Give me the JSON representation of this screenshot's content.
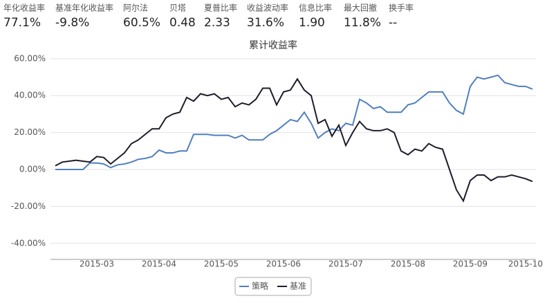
{
  "stats": [
    {
      "label": "年化收益率",
      "value": "77.1%"
    },
    {
      "label": "基准年化收益率",
      "value": "-9.8%"
    },
    {
      "label": "阿尔法",
      "value": "60.5%"
    },
    {
      "label": "贝塔",
      "value": "0.48"
    },
    {
      "label": "夏普比率",
      "value": "2.33"
    },
    {
      "label": "收益波动率",
      "value": "31.6%"
    },
    {
      "label": "信息比率",
      "value": "1.90"
    },
    {
      "label": "最大回撤",
      "value": "11.8%"
    },
    {
      "label": "换手率",
      "value": "--"
    }
  ],
  "chart_data": {
    "type": "line",
    "title": "累计收益率",
    "categories": [
      null,
      null,
      null,
      null,
      null,
      null,
      "2015-03",
      null,
      null,
      null,
      null,
      null,
      null,
      null,
      null,
      "2015-04",
      null,
      null,
      null,
      null,
      null,
      null,
      null,
      null,
      "2015-05",
      null,
      null,
      null,
      null,
      null,
      null,
      null,
      null,
      "2015-06",
      null,
      null,
      null,
      null,
      null,
      null,
      null,
      null,
      "2015-07",
      null,
      null,
      null,
      null,
      null,
      null,
      null,
      null,
      "2015-08",
      null,
      null,
      null,
      null,
      null,
      null,
      null,
      null,
      "2015-09",
      null,
      null,
      null,
      null,
      null,
      null,
      null,
      "2015-10",
      null
    ],
    "series": [
      {
        "name": "策略",
        "color": "#4f7fbf",
        "values": [
          0,
          0,
          0,
          0,
          0,
          3.5,
          3.5,
          3,
          1,
          2.5,
          3,
          4,
          5.5,
          6,
          7,
          10.5,
          9,
          9,
          10,
          10,
          19,
          19,
          19,
          18.5,
          18.5,
          18.5,
          17,
          18.5,
          16,
          16,
          16,
          19,
          21,
          24,
          27,
          26,
          31,
          25,
          17,
          20,
          22,
          21,
          25,
          24,
          38,
          36,
          33,
          34,
          31,
          31,
          31,
          35,
          36,
          39,
          42,
          42,
          42,
          36,
          32,
          30,
          45,
          50,
          49,
          50,
          51,
          47,
          46,
          45,
          45,
          43.5
        ]
      },
      {
        "name": "基准",
        "color": "#1c1c2a",
        "values": [
          2,
          4,
          4.5,
          5,
          4.5,
          4,
          7,
          6.5,
          3,
          6,
          9,
          14,
          16,
          19,
          22,
          22,
          28,
          30,
          31,
          39,
          37,
          41,
          40,
          41,
          38,
          39,
          34,
          36,
          35,
          38,
          44,
          44,
          35,
          42,
          43,
          49,
          43,
          40,
          25,
          27,
          18,
          24,
          13,
          20,
          26,
          22,
          21,
          21,
          22,
          20,
          10,
          8,
          11,
          10,
          14,
          12,
          11,
          0,
          -11,
          -17,
          -6,
          -3,
          -3,
          -6,
          -4,
          -4,
          -3,
          -4,
          -5,
          -6.5
        ]
      }
    ],
    "ylim": [
      -48.7,
      64.8
    ],
    "yticks": [
      {
        "value": -40,
        "label": "-40.00%"
      },
      {
        "value": -20,
        "label": "-20.00%"
      },
      {
        "value": 0,
        "label": "0.00%"
      },
      {
        "value": 20,
        "label": "20.00%"
      },
      {
        "value": 40,
        "label": "40.00%"
      },
      {
        "value": 60,
        "label": "60.00%"
      }
    ],
    "grid": true,
    "legend": "bottom"
  }
}
